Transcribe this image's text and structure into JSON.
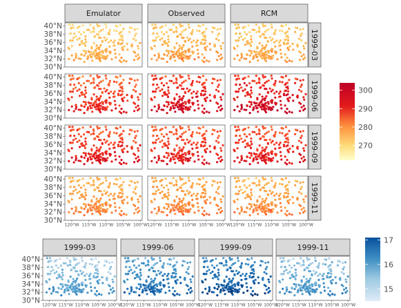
{
  "chart_data": [
    {
      "type": "scatter",
      "title": "",
      "xlabel": "",
      "ylabel": "",
      "column_facets": [
        "Emulator",
        "Observed",
        "RCM"
      ],
      "row_facets": [
        "1999-03",
        "1999-06",
        "1999-09",
        "1999-11"
      ],
      "x_ticks": [
        "120°W",
        "115°W",
        "110°W",
        "105°W",
        "100°W"
      ],
      "x_tick_values": [
        -120,
        -115,
        -110,
        -105,
        -100
      ],
      "y_ticks": [
        "30°N",
        "32°N",
        "34°N",
        "36°N",
        "38°N",
        "40°N"
      ],
      "y_tick_values": [
        30,
        32,
        34,
        36,
        38,
        40
      ],
      "xlim": [
        -122,
        -99.5
      ],
      "ylim": [
        30,
        40.8
      ],
      "grid": true,
      "colorbar": {
        "palette": "YlOrRd",
        "ticks": [
          270,
          280,
          290,
          300
        ],
        "range": [
          262,
          304
        ],
        "colors": [
          "#ffffcc",
          "#ffeda0",
          "#fed976",
          "#feb24c",
          "#fd8d3c",
          "#fc4e2a",
          "#e31a1c",
          "#bd0026"
        ],
        "position": "right"
      },
      "panel_mean_values": {
        "1999-03": {
          "Emulator": 277,
          "Observed": 279,
          "RCM": 278
        },
        "1999-06": {
          "Emulator": 292,
          "Observed": 296,
          "RCM": 297
        },
        "1999-09": {
          "Emulator": 294,
          "Observed": 293,
          "RCM": 294
        },
        "1999-11": {
          "Emulator": 282,
          "Observed": 283,
          "RCM": 282
        }
      }
    },
    {
      "type": "scatter",
      "title": "",
      "xlabel": "",
      "ylabel": "",
      "column_facets": [
        "1999-03",
        "1999-06",
        "1999-09",
        "1999-11"
      ],
      "x_ticks": [
        "120°W",
        "115°W",
        "110°W",
        "105°W",
        "100°W"
      ],
      "x_tick_values": [
        -120,
        -115,
        -110,
        -105,
        -100
      ],
      "y_ticks": [
        "30°N",
        "32°N",
        "34°N",
        "36°N",
        "38°N",
        "40°N"
      ],
      "y_tick_values": [
        30,
        32,
        34,
        36,
        38,
        40
      ],
      "xlim": [
        -122,
        -99.5
      ],
      "ylim": [
        30,
        40.8
      ],
      "grid": true,
      "colorbar": {
        "palette": "Blues",
        "ticks": [
          15,
          16,
          17
        ],
        "range": [
          14.5,
          17.1
        ],
        "colors": [
          "#deebf7",
          "#c6dbef",
          "#9ecae1",
          "#6baed6",
          "#4292c6",
          "#2171b5",
          "#08519c",
          "#08306b"
        ],
        "position": "right"
      },
      "panel_mean_values": {
        "1999-03": 15.4,
        "1999-06": 16.0,
        "1999-09": 16.3,
        "1999-11": 15.5
      }
    }
  ]
}
